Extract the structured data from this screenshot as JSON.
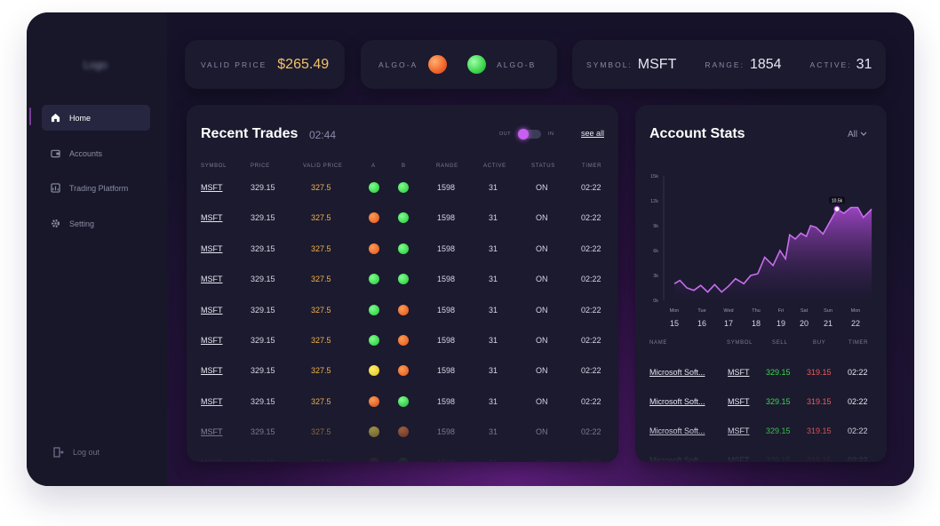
{
  "sidebar": {
    "logo": "Logo",
    "items": [
      {
        "label": "Home",
        "icon": "home-icon"
      },
      {
        "label": "Accounts",
        "icon": "wallet-icon"
      },
      {
        "label": "Trading Platform",
        "icon": "chart-icon"
      },
      {
        "label": "Setting",
        "icon": "gear-icon"
      }
    ],
    "logout": "Log out"
  },
  "top": {
    "valid_price_label": "VALID PRICE",
    "valid_price_value": "$265.49",
    "algo_a_label": "ALGO-A",
    "algo_b_label": "ALGO-B",
    "symbol_label": "SYMBOL:",
    "symbol_value": "MSFT",
    "range_label": "RANGE:",
    "range_value": "1854",
    "active_label": "ACTIVE:",
    "active_value": "31"
  },
  "trades": {
    "title": "Recent Trades",
    "time": "02:44",
    "toggle_out": "OUT",
    "toggle_in": "IN",
    "see_all": "see all",
    "columns": [
      "SYMBOL",
      "PRICE",
      "VALID PRICE",
      "A",
      "B",
      "RANGE",
      "ACTIVE",
      "STATUS",
      "TIMER"
    ],
    "rows": [
      {
        "symbol": "MSFT",
        "price": "329.15",
        "valid": "327.5",
        "a": "green",
        "b": "green",
        "range": "1598",
        "active": "31",
        "status": "ON",
        "timer": "02:22"
      },
      {
        "symbol": "MSFT",
        "price": "329.15",
        "valid": "327.5",
        "a": "orange",
        "b": "green",
        "range": "1598",
        "active": "31",
        "status": "ON",
        "timer": "02:22"
      },
      {
        "symbol": "MSFT",
        "price": "329.15",
        "valid": "327.5",
        "a": "orange",
        "b": "green",
        "range": "1598",
        "active": "31",
        "status": "ON",
        "timer": "02:22"
      },
      {
        "symbol": "MSFT",
        "price": "329.15",
        "valid": "327.5",
        "a": "green",
        "b": "green",
        "range": "1598",
        "active": "31",
        "status": "ON",
        "timer": "02:22"
      },
      {
        "symbol": "MSFT",
        "price": "329.15",
        "valid": "327.5",
        "a": "green",
        "b": "orange",
        "range": "1598",
        "active": "31",
        "status": "ON",
        "timer": "02:22"
      },
      {
        "symbol": "MSFT",
        "price": "329.15",
        "valid": "327.5",
        "a": "green",
        "b": "orange",
        "range": "1598",
        "active": "31",
        "status": "ON",
        "timer": "02:22"
      },
      {
        "symbol": "MSFT",
        "price": "329.15",
        "valid": "327.5",
        "a": "yellow",
        "b": "orange",
        "range": "1598",
        "active": "31",
        "status": "ON",
        "timer": "02:22"
      },
      {
        "symbol": "MSFT",
        "price": "329.15",
        "valid": "327.5",
        "a": "orange",
        "b": "green",
        "range": "1598",
        "active": "31",
        "status": "ON",
        "timer": "02:22"
      },
      {
        "symbol": "MSFT",
        "price": "329.15",
        "valid": "327.5",
        "a": "yellow",
        "b": "orange",
        "range": "1598",
        "active": "31",
        "status": "ON",
        "timer": "02:22"
      },
      {
        "symbol": "MSFT",
        "price": "329.15",
        "valid": "327.5",
        "a": "orange",
        "b": "green",
        "range": "1598",
        "active": "31",
        "status": "ON",
        "timer": "02:22"
      }
    ]
  },
  "stats": {
    "title": "Account Stats",
    "filter": "All",
    "columns": [
      "NAME",
      "SYMBOL",
      "SELL",
      "BUY",
      "TIMER"
    ],
    "rows": [
      {
        "name": "Microsoft Soft...",
        "symbol": "MSFT",
        "sell": "329.15",
        "buy": "319.15",
        "timer": "02:22"
      },
      {
        "name": "Microsoft Soft...",
        "symbol": "MSFT",
        "sell": "329.15",
        "buy": "319.15",
        "timer": "02:22"
      },
      {
        "name": "Microsoft Soft...",
        "symbol": "MSFT",
        "sell": "329.15",
        "buy": "319.15",
        "timer": "02:22"
      },
      {
        "name": "Microsoft Soft...",
        "symbol": "MSFT",
        "sell": "329.15",
        "buy": "319.15",
        "timer": "02:22"
      }
    ]
  },
  "colors": {
    "accent": "#b04bd8",
    "green": "#3ed44f",
    "orange": "#f2632a",
    "yellow": "#f5d82a",
    "valid_price": "#f2b34a",
    "buy": "#f25a5a"
  },
  "chart_data": {
    "type": "area",
    "y_tick_labels": [
      "0k",
      "3k",
      "6k",
      "9k",
      "12k",
      "15k"
    ],
    "ylim": [
      0,
      15000
    ],
    "x_days": [
      "Mon",
      "Tue",
      "Wed",
      "Thu",
      "Fri",
      "Sat",
      "Sun",
      "Mon"
    ],
    "x_dates": [
      "15",
      "16",
      "17",
      "18",
      "19",
      "20",
      "21",
      "22"
    ],
    "highlight_label": "10.5k",
    "points": [
      [
        15.0,
        2000
      ],
      [
        15.2,
        2400
      ],
      [
        15.45,
        1500
      ],
      [
        15.7,
        1200
      ],
      [
        15.95,
        1800
      ],
      [
        16.2,
        1000
      ],
      [
        16.45,
        1900
      ],
      [
        16.7,
        1000
      ],
      [
        16.95,
        1700
      ],
      [
        17.2,
        2600
      ],
      [
        17.5,
        2000
      ],
      [
        17.75,
        3000
      ],
      [
        18.0,
        3200
      ],
      [
        18.25,
        5200
      ],
      [
        18.55,
        4200
      ],
      [
        18.8,
        6000
      ],
      [
        19.0,
        5000
      ],
      [
        19.15,
        7900
      ],
      [
        19.35,
        7400
      ],
      [
        19.55,
        8100
      ],
      [
        19.75,
        7700
      ],
      [
        19.9,
        9000
      ],
      [
        20.1,
        8800
      ],
      [
        20.35,
        8000
      ],
      [
        20.6,
        9500
      ],
      [
        20.85,
        11000
      ],
      [
        21.1,
        10500
      ],
      [
        21.35,
        11200
      ],
      [
        21.6,
        11200
      ],
      [
        21.8,
        10000
      ],
      [
        22.1,
        11000
      ]
    ]
  }
}
